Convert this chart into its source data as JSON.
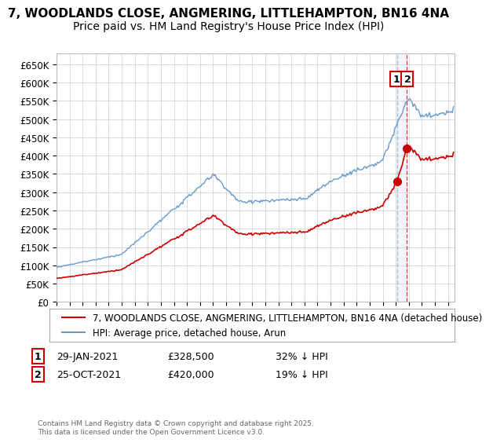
{
  "title": "7, WOODLANDS CLOSE, ANGMERING, LITTLEHAMPTON, BN16 4NA",
  "subtitle": "Price paid vs. HM Land Registry's House Price Index (HPI)",
  "legend_label_red": "7, WOODLANDS CLOSE, ANGMERING, LITTLEHAMPTON, BN16 4NA (detached house)",
  "legend_label_blue": "HPI: Average price, detached house, Arun",
  "annotation1_date": "29-JAN-2021",
  "annotation1_price": "£328,500",
  "annotation1_hpi": "32% ↓ HPI",
  "annotation2_date": "25-OCT-2021",
  "annotation2_price": "£420,000",
  "annotation2_hpi": "19% ↓ HPI",
  "copyright": "Contains HM Land Registry data © Crown copyright and database right 2025.\nThis data is licensed under the Open Government Licence v3.0.",
  "xlim_start": 1995.0,
  "xlim_end": 2025.5,
  "ylim_bottom": 0,
  "ylim_top": 680000,
  "red_color": "#cc0000",
  "blue_color": "#6699cc",
  "background_color": "#ffffff",
  "grid_color": "#cccccc",
  "annotation_box_color": "#cc0000",
  "title_fontsize": 11,
  "subtitle_fontsize": 10,
  "tick_fontsize": 8.5,
  "legend_fontsize": 8.5,
  "annotation_fontsize": 9
}
